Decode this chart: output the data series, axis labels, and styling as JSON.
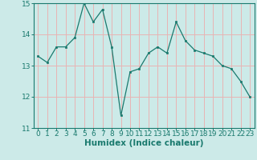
{
  "x": [
    0,
    1,
    2,
    3,
    4,
    5,
    6,
    7,
    8,
    9,
    10,
    11,
    12,
    13,
    14,
    15,
    16,
    17,
    18,
    19,
    20,
    21,
    22,
    23
  ],
  "y": [
    13.3,
    13.1,
    13.6,
    13.6,
    13.9,
    15.0,
    14.4,
    14.8,
    13.6,
    11.4,
    12.8,
    12.9,
    13.4,
    13.6,
    13.4,
    14.4,
    13.8,
    13.5,
    13.4,
    13.3,
    13.0,
    12.9,
    12.5,
    12.0
  ],
  "line_color": "#1a7a6e",
  "marker": "s",
  "marker_size": 2.0,
  "bg_color": "#cceae8",
  "grid_color": "#e8b4b4",
  "xlabel": "Humidex (Indice chaleur)",
  "ylim": [
    11,
    15
  ],
  "xlim": [
    -0.5,
    23.5
  ],
  "yticks": [
    11,
    12,
    13,
    14,
    15
  ],
  "xticks": [
    0,
    1,
    2,
    3,
    4,
    5,
    6,
    7,
    8,
    9,
    10,
    11,
    12,
    13,
    14,
    15,
    16,
    17,
    18,
    19,
    20,
    21,
    22,
    23
  ],
  "tick_fontsize": 6.5,
  "xlabel_fontsize": 7.5
}
